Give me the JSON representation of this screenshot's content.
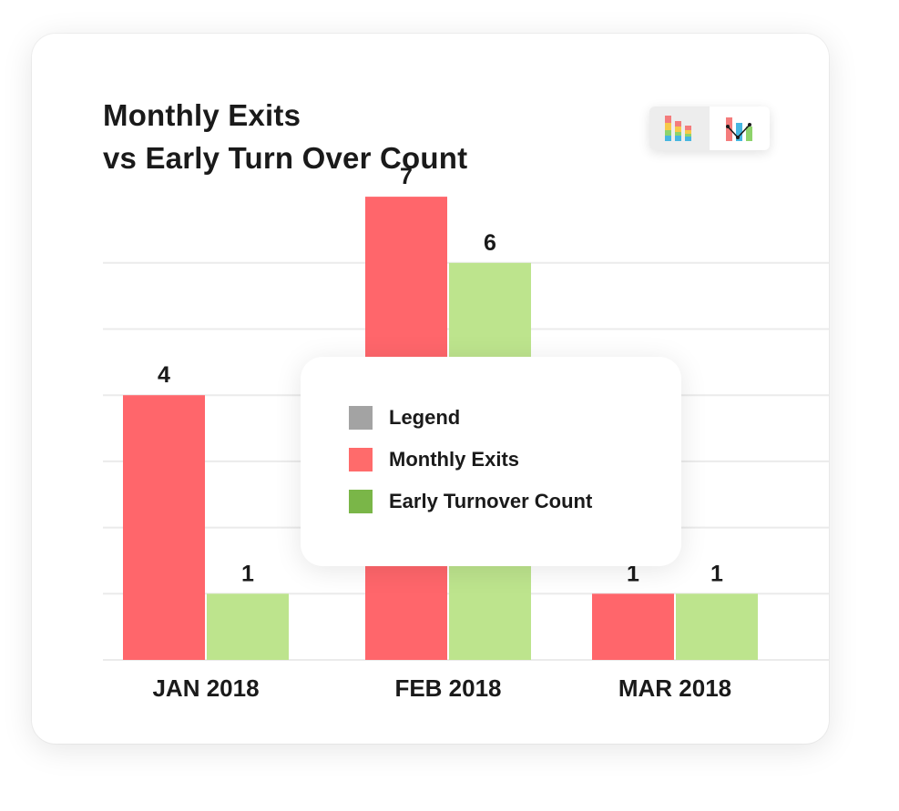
{
  "title_lines": [
    "Monthly Exits",
    "vs Early Turn Over Count"
  ],
  "switcher": {
    "buttons": [
      {
        "icon": "stacked-bar-chart-icon",
        "active": true
      },
      {
        "icon": "bar-line-combo-chart-icon",
        "active": false
      }
    ]
  },
  "legend": {
    "items": [
      {
        "label": "Legend",
        "color": "#a3a3a3"
      },
      {
        "label": "Monthly Exits",
        "color": "#ff6b6b"
      },
      {
        "label": "Early Turnover Count",
        "color": "#7ab648"
      }
    ]
  },
  "chart_data": {
    "type": "bar",
    "title": "Monthly Exits vs Early Turn Over Count",
    "categories": [
      "JAN 2018",
      "FEB 2018",
      "MAR 2018"
    ],
    "series": [
      {
        "name": "Monthly Exits",
        "values": [
          4,
          7,
          1
        ],
        "color": "#ff666b"
      },
      {
        "name": "Early Turnover Count",
        "values": [
          1,
          6,
          1
        ],
        "color": "#bde48d"
      }
    ],
    "ylim": [
      0,
      7
    ],
    "grid": true,
    "legend_position": "center"
  }
}
